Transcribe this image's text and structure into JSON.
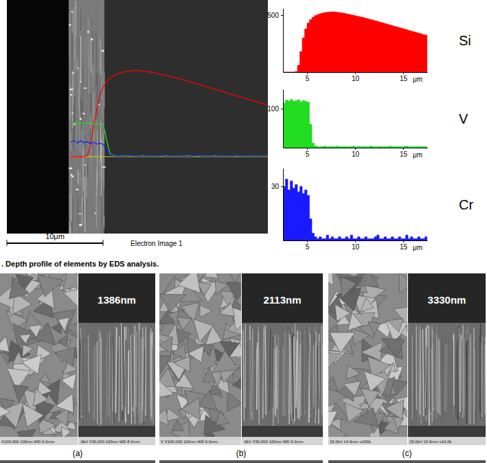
{
  "chart_data": [
    {
      "type": "area",
      "title": "Si",
      "x_label": "μm",
      "color": "#ff0000",
      "x": [
        2.5,
        2.75,
        3,
        3.25,
        3.5,
        3.75,
        4,
        4.25,
        4.5,
        4.75,
        5,
        5.25,
        5.5,
        5.75,
        6,
        6.25,
        6.5,
        6.75,
        7,
        7.25,
        7.5,
        7.75,
        8,
        8.25,
        8.5,
        8.75,
        9,
        9.25,
        9.5,
        9.75,
        10,
        10.25,
        10.5,
        10.75,
        11,
        11.25,
        11.5,
        11.75,
        12,
        12.25,
        12.5,
        12.75,
        13,
        13.25,
        13.5,
        13.75,
        14,
        14.25,
        14.5,
        14.75,
        15,
        15.25,
        15.5,
        15.75,
        16,
        16.25,
        16.5,
        16.75,
        17,
        17.25,
        17.5
      ],
      "values": [
        0,
        0,
        0,
        0,
        0,
        5,
        60,
        180,
        300,
        380,
        430,
        460,
        480,
        495,
        505,
        512,
        518,
        522,
        525,
        527,
        528,
        527,
        525,
        522,
        519,
        515,
        511,
        507,
        502,
        498,
        493,
        488,
        483,
        478,
        472,
        467,
        461,
        456,
        450,
        444,
        438,
        432,
        426,
        420,
        414,
        408,
        402,
        396,
        390,
        384,
        378,
        372,
        366,
        360,
        354,
        348,
        342,
        336,
        330,
        324,
        318
      ],
      "xlim": [
        2.5,
        17.5
      ],
      "xticks": [
        5,
        10,
        15
      ],
      "ylim": [
        0,
        560
      ],
      "yticks": [
        500
      ]
    },
    {
      "type": "area",
      "title": "V",
      "x_label": "μm",
      "color": "#22dd22",
      "x": [
        2.5,
        2.75,
        3,
        3.25,
        3.5,
        3.75,
        4,
        4.25,
        4.5,
        4.75,
        5,
        5.25,
        5.5,
        5.75,
        6,
        6.25,
        6.5,
        6.75,
        7,
        7.25,
        7.5,
        7.75,
        8,
        8.25,
        8.5,
        8.75,
        9,
        9.25,
        9.5,
        9.75,
        10,
        10.25,
        10.5,
        10.75,
        11,
        11.25,
        11.5,
        11.75,
        12,
        12.25,
        12.5,
        12.75,
        13,
        13.25,
        13.5,
        13.75,
        14,
        14.25,
        14.5,
        14.75,
        15,
        15.25,
        15.5,
        15.75,
        16,
        16.25,
        16.5,
        16.75,
        17,
        17.25,
        17.5
      ],
      "values": [
        115,
        122,
        120,
        124,
        119,
        121,
        123,
        118,
        121,
        119,
        117,
        60,
        12,
        5,
        3,
        2,
        3,
        4,
        2,
        3,
        3,
        2,
        4,
        3,
        2,
        3,
        3,
        2,
        3,
        4,
        2,
        3,
        2,
        3,
        3,
        2,
        4,
        3,
        2,
        3,
        3,
        2,
        3,
        2,
        4,
        3,
        2,
        3,
        3,
        2,
        3,
        4,
        2,
        3,
        2,
        3,
        3,
        2,
        3,
        2,
        3
      ],
      "xlim": [
        2.5,
        17.5
      ],
      "xticks": [
        5,
        10,
        15
      ],
      "ylim": [
        0,
        150
      ],
      "yticks": [
        100
      ]
    },
    {
      "type": "area",
      "title": "Cr",
      "x_label": "μm",
      "color": "#1a1aff",
      "x": [
        2.5,
        2.75,
        3,
        3.25,
        3.5,
        3.75,
        4,
        4.25,
        4.5,
        4.75,
        5,
        5.25,
        5.5,
        5.75,
        6,
        6.25,
        6.5,
        6.75,
        7,
        7.25,
        7.5,
        7.75,
        8,
        8.25,
        8.5,
        8.75,
        9,
        9.25,
        9.5,
        9.75,
        10,
        10.25,
        10.5,
        10.75,
        11,
        11.25,
        11.5,
        11.75,
        12,
        12.25,
        12.5,
        12.75,
        13,
        13.25,
        13.5,
        13.75,
        14,
        14.25,
        14.5,
        14.75,
        15,
        15.25,
        15.5,
        15.75,
        16,
        16.25,
        16.5,
        16.75,
        17,
        17.25,
        17.5
      ],
      "values": [
        30,
        34,
        28,
        33,
        29,
        31,
        27,
        30,
        26,
        28,
        25,
        12,
        4,
        2,
        1,
        2,
        1,
        1,
        3,
        1,
        2,
        1,
        1,
        2,
        1,
        1,
        2,
        1,
        3,
        1,
        1,
        2,
        1,
        1,
        2,
        1,
        1,
        1,
        2,
        3,
        1,
        1,
        2,
        1,
        1,
        2,
        1,
        1,
        2,
        1,
        1,
        3,
        1,
        2,
        1,
        1,
        2,
        1,
        1,
        2,
        1
      ],
      "xlim": [
        2.5,
        17.5
      ],
      "xticks": [
        5,
        10,
        15
      ],
      "ylim": [
        0,
        40
      ],
      "yticks": [
        30
      ]
    }
  ],
  "eds_image": {
    "scale_bar": "10μm",
    "label": "Electron Image 1"
  },
  "caption": ". Depth profile of elements by EDS analysis.",
  "sem_panels": [
    {
      "label": "(a)",
      "thickness": "1386nm",
      "info_left": "X100,000 100nm WD 6.0mm",
      "info_right": ".0kV X30,000 100nm WD 8.0mm"
    },
    {
      "label": "(b)",
      "thickness": "2113nm",
      "info_left": "V X100,000 100nm WD 6.0mm",
      "info_right": ".0kV X30,000 100nm WD 6.0mm"
    },
    {
      "label": "(c)",
      "thickness": "3330nm",
      "info_left": "15.0kV 14.9mm x100k",
      "info_right": "15.0kV 15.6mm x10.0k"
    }
  ]
}
